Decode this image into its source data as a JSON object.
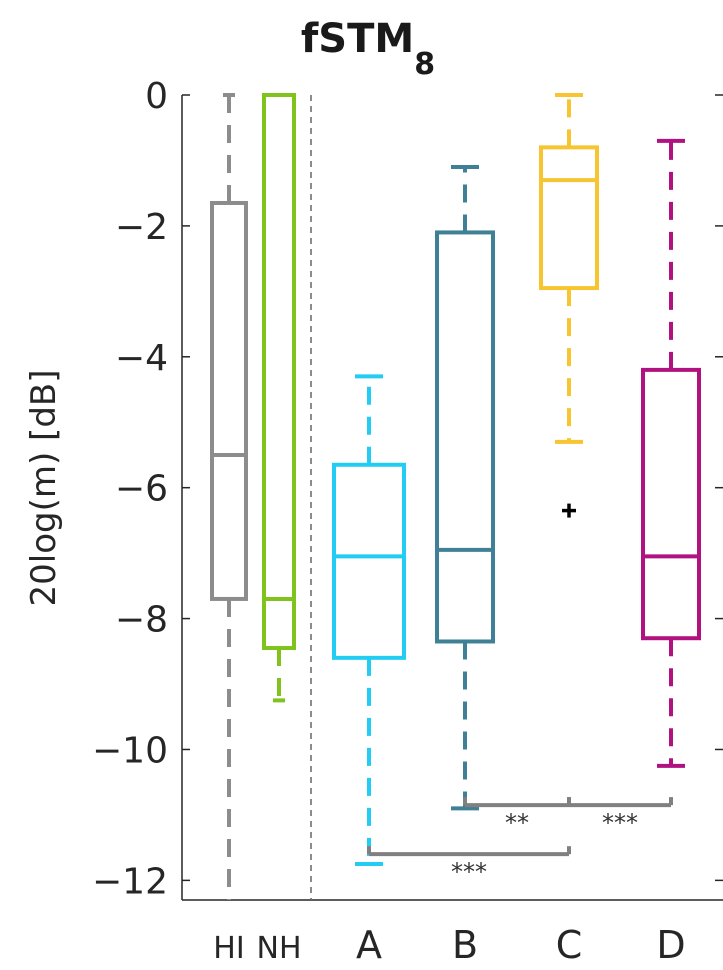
{
  "chart_data": {
    "type": "box",
    "title": "fSTM",
    "title_subscript": "8",
    "ylabel": "20log(m) [dB]",
    "xlabel": "",
    "ylim": [
      -12.3,
      0
    ],
    "yticks": [
      0,
      -2,
      -4,
      -6,
      -8,
      -10,
      -12
    ],
    "ytick_labels": [
      "0",
      "−2",
      "−4",
      "−6",
      "−8",
      "−10",
      "−12"
    ],
    "grid": false,
    "legend": "none",
    "separator_after_category": "NH",
    "groups": [
      {
        "label": "HI",
        "color": "#8c8c8c",
        "whisker_low": -12.3,
        "q1": -7.7,
        "median": -5.5,
        "q3": -1.65,
        "whisker_high": 0.0,
        "outliers": []
      },
      {
        "label": "NH",
        "color": "#7fc31c",
        "whisker_low": -9.25,
        "q1": -8.45,
        "median": -7.7,
        "q3": 0.0,
        "whisker_high": 0.0,
        "outliers": []
      },
      {
        "label": "A",
        "color": "#22ccf2",
        "whisker_low": -11.75,
        "q1": -8.6,
        "median": -7.05,
        "q3": -5.65,
        "whisker_high": -4.3,
        "outliers": []
      },
      {
        "label": "B",
        "color": "#3f8096",
        "whisker_low": -10.9,
        "q1": -8.35,
        "median": -6.95,
        "q3": -2.1,
        "whisker_high": -1.1,
        "outliers": []
      },
      {
        "label": "C",
        "color": "#f7c531",
        "whisker_low": -5.3,
        "q1": -2.95,
        "median": -1.3,
        "q3": -0.8,
        "whisker_high": 0.0,
        "outliers": [
          -6.35
        ]
      },
      {
        "label": "D",
        "color": "#b01380",
        "whisker_low": -10.25,
        "q1": -8.3,
        "median": -7.05,
        "q3": -4.2,
        "whisker_high": -0.7,
        "outliers": []
      }
    ],
    "significance": [
      {
        "from": "A",
        "to": "C",
        "y": -11.6,
        "label": "***"
      },
      {
        "from": "B",
        "to": "C",
        "y": -10.85,
        "label": "**"
      },
      {
        "from": "C",
        "to": "D",
        "y": -10.85,
        "label": "***"
      }
    ]
  }
}
